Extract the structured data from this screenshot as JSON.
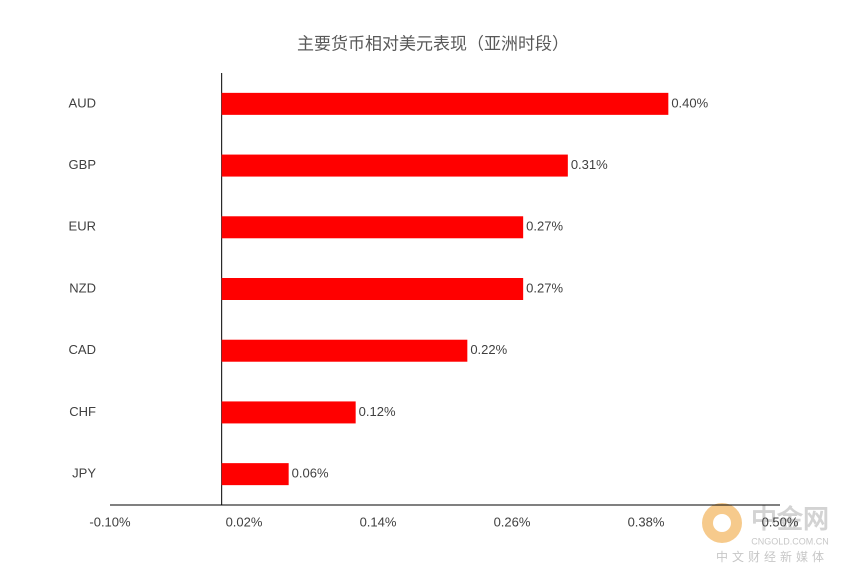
{
  "chart_data": {
    "type": "hbar",
    "title": "主要货币相对美元表现（亚洲时段）",
    "categories": [
      "AUD",
      "GBP",
      "EUR",
      "NZD",
      "CAD",
      "CHF",
      "JPY"
    ],
    "values": [
      0.4,
      0.31,
      0.27,
      0.27,
      0.22,
      0.12,
      0.06
    ],
    "value_labels": [
      "0.40%",
      "0.31%",
      "0.27%",
      "0.27%",
      "0.22%",
      "0.12%",
      "0.06%"
    ],
    "color": "#ff0000",
    "xlim": [
      -0.1,
      0.5
    ],
    "xticks": [
      {
        "value": -0.1,
        "label": "-0.10%"
      },
      {
        "value": 0.02,
        "label": "0.02%"
      },
      {
        "value": 0.14,
        "label": "0.14%"
      },
      {
        "value": 0.26,
        "label": "0.26%"
      },
      {
        "value": 0.38,
        "label": "0.38%"
      },
      {
        "value": 0.5,
        "label": "0.50%"
      }
    ],
    "grid": false
  },
  "watermark": {
    "name": "中金网",
    "url": "CNGOLD.COM.CN",
    "slogan": "中文财经新媒体"
  }
}
